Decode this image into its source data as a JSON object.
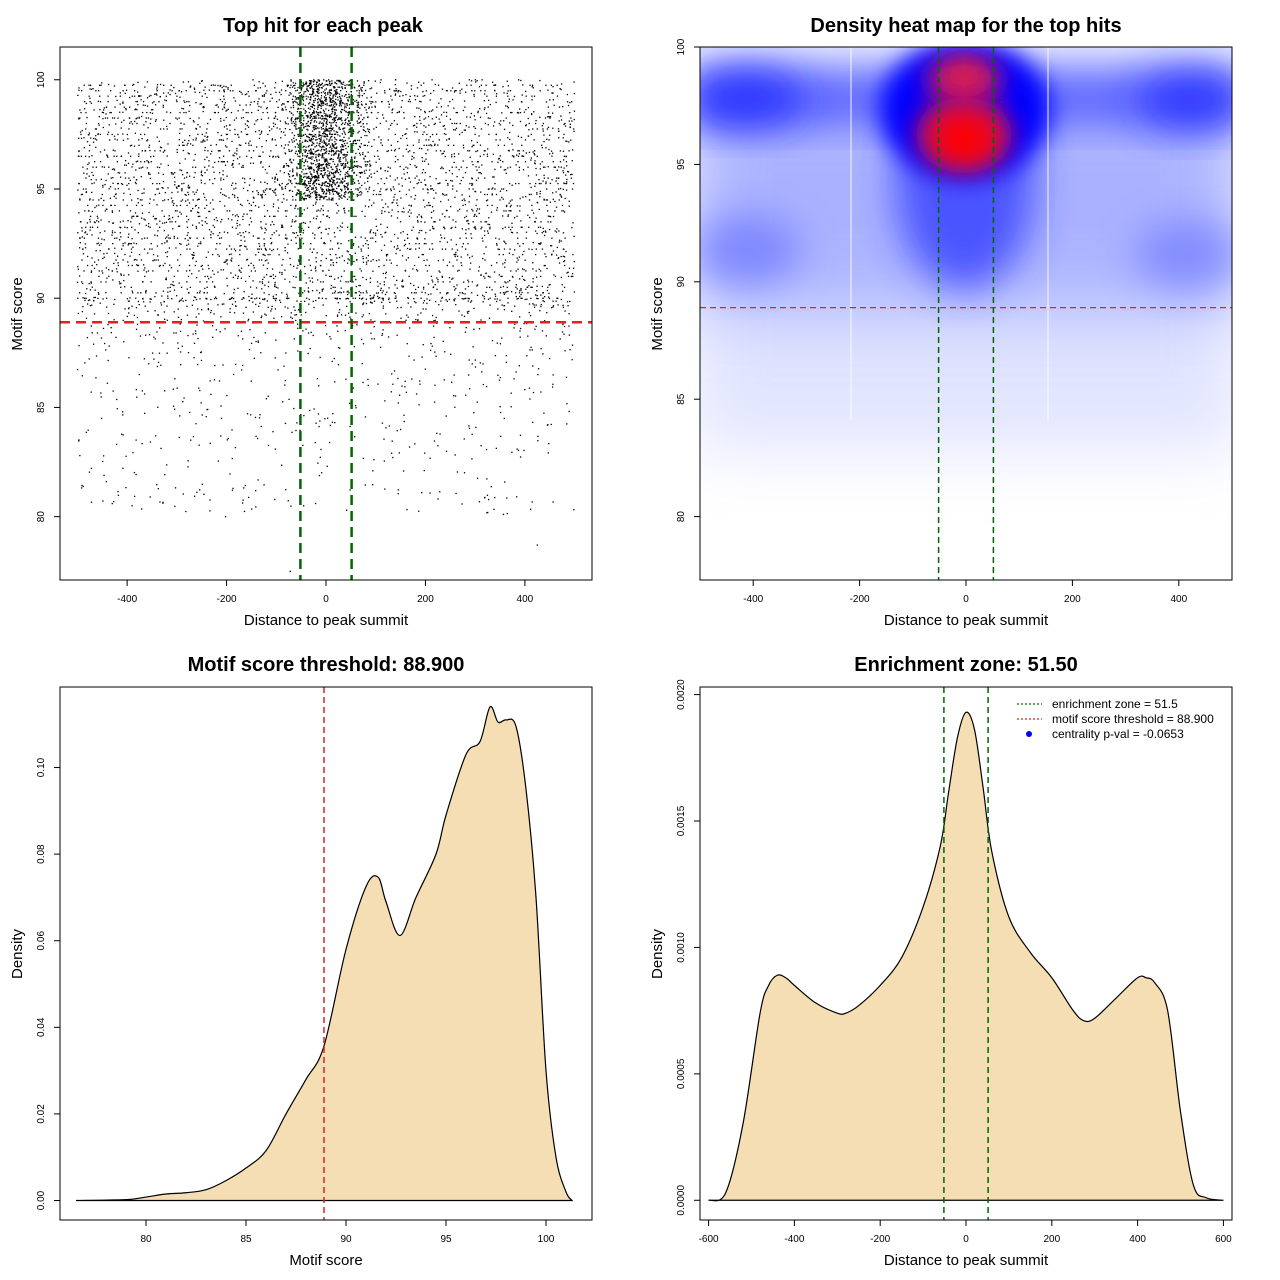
{
  "chart_data": [
    {
      "type": "scatter",
      "title": "Top hit for each peak",
      "xlabel": "Distance to peak summit",
      "ylabel": "Motif score",
      "xlim": [
        -535,
        535
      ],
      "ylim": [
        77.1,
        101.5
      ],
      "xticks": [
        "-400",
        "-200",
        "0",
        "200",
        "400"
      ],
      "yticks": [
        "80",
        "85",
        "90",
        "95",
        "100"
      ],
      "threshold": 88.9,
      "threshold_color": "#dd2222",
      "zone": [
        -51.5,
        51.5
      ],
      "zone_color": "#006600",
      "point_color": "#000000",
      "points_x_range": [
        -500,
        500
      ],
      "points_y_range": [
        77.5,
        100
      ],
      "grid": false
    },
    {
      "type": "heatmap",
      "title": "Density heat map for the top hits",
      "xlabel": "Distance to peak summit",
      "ylabel": "Motif score",
      "xlim": [
        -500,
        500
      ],
      "ylim": [
        77.3,
        100
      ],
      "xticks": [
        "-400",
        "-200",
        "0",
        "200",
        "400"
      ],
      "yticks": [
        "80",
        "85",
        "90",
        "95",
        "100"
      ],
      "threshold": 88.9,
      "zone": [
        -51.5,
        51.5
      ],
      "colors": [
        "#ffffff",
        "#0000ff",
        "#ff0000"
      ],
      "hotspots": [
        {
          "x": 0,
          "y": 96.2,
          "level": "high"
        },
        {
          "x": 0,
          "y": 98.9,
          "level": "high"
        },
        {
          "x": -430,
          "y": 98.0,
          "level": "medium"
        },
        {
          "x": 430,
          "y": 97.9,
          "level": "medium"
        }
      ]
    },
    {
      "type": "area",
      "title": "Motif score threshold: 88.900",
      "xlabel": "Motif score",
      "ylabel": "Density",
      "xlim": [
        75.7,
        102.3
      ],
      "ylim": [
        -0.0045,
        0.1186
      ],
      "xticks": [
        "80",
        "85",
        "90",
        "95",
        "100"
      ],
      "yticks": [
        "0.00",
        "0.02",
        "0.04",
        "0.06",
        "0.08",
        "0.10"
      ],
      "threshold": 88.9,
      "fill": "#f5deb3",
      "x": [
        76.5,
        79,
        80,
        81,
        82,
        83,
        84,
        85,
        86,
        87,
        88,
        88.9,
        90,
        91,
        91.6,
        92,
        92.7,
        93.5,
        94.5,
        95,
        96,
        96.7,
        97.2,
        97.6,
        98,
        98.5,
        99,
        99.5,
        100,
        100.5,
        101,
        101.3
      ],
      "y": [
        0,
        0.0002,
        0.0008,
        0.0015,
        0.0018,
        0.0025,
        0.0046,
        0.0075,
        0.0115,
        0.02,
        0.028,
        0.0357,
        0.058,
        0.0725,
        0.0747,
        0.069,
        0.0612,
        0.07,
        0.08,
        0.089,
        0.103,
        0.106,
        0.114,
        0.1105,
        0.111,
        0.1095,
        0.095,
        0.07,
        0.03,
        0.01,
        0.002,
        0
      ]
    },
    {
      "type": "area",
      "title": "Enrichment zone: 51.50",
      "xlabel": "Distance to peak summit",
      "ylabel": "Density",
      "xlim": [
        -620,
        620
      ],
      "ylim": [
        -7.8e-05,
        0.00203
      ],
      "xticks": [
        "-600",
        "-400",
        "-200",
        "0",
        "200",
        "400",
        "600"
      ],
      "yticks": [
        "0.0000",
        "0.0005",
        "0.0010",
        "0.0015",
        "0.0020"
      ],
      "zone": [
        -51.5,
        51.5
      ],
      "fill": "#f5deb3",
      "x": [
        -600,
        -560,
        -520,
        -480,
        -460,
        -440,
        -420,
        -400,
        -350,
        -300,
        -280,
        -250,
        -200,
        -150,
        -100,
        -60,
        -40,
        -20,
        0,
        20,
        40,
        60,
        100,
        150,
        200,
        250,
        275,
        300,
        350,
        400,
        420,
        440,
        470,
        500,
        530,
        560,
        600
      ],
      "y": [
        0,
        3e-05,
        0.0003,
        0.00074,
        0.00085,
        0.00089,
        0.00088,
        0.00085,
        0.00078,
        0.00074,
        0.00074,
        0.00077,
        0.00085,
        0.00096,
        0.00116,
        0.0014,
        0.00162,
        0.00183,
        0.00193,
        0.00186,
        0.00163,
        0.00138,
        0.00112,
        0.00098,
        0.00088,
        0.00075,
        0.00071,
        0.00072,
        0.0008,
        0.00088,
        0.00088,
        0.00086,
        0.00075,
        0.00035,
        6e-05,
        1e-05,
        0
      ],
      "legend_position": "top-right",
      "legend": [
        {
          "label": "enrichment zone = 51.5",
          "color": "#006600",
          "style": "dotted-line"
        },
        {
          "label": "motif score threshold = 88.900",
          "color": "#dd2222",
          "style": "dotted-line"
        },
        {
          "label": "centrality p-val = -0.0653",
          "color": "#0000ff",
          "style": "point"
        }
      ]
    }
  ]
}
